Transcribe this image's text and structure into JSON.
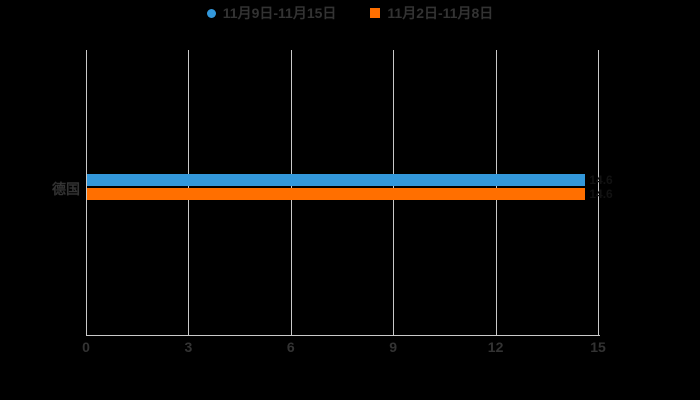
{
  "colors": {
    "background": "#000000",
    "text": "#333333",
    "axis": "#c9c9c9",
    "grid": "#c9c9c9",
    "series_blue": "#3398db",
    "series_orange": "#ff6f00",
    "bar_label": "#121212"
  },
  "legend": {
    "items": [
      {
        "label": "11月9日-11月15日",
        "marker": "circle",
        "color": "#3398db"
      },
      {
        "label": "11月2日-11月8日",
        "marker": "square",
        "color": "#ff6f00"
      }
    ]
  },
  "chart_data": {
    "type": "bar",
    "orientation": "horizontal",
    "title": "",
    "xlabel": "",
    "ylabel": "",
    "categories": [
      "德国"
    ],
    "series": [
      {
        "name": "11月9日-11月15日",
        "color": "#3398db",
        "values": [
          14.6
        ]
      },
      {
        "name": "11月2日-11月8日",
        "color": "#ff6f00",
        "values": [
          14.6
        ]
      }
    ],
    "xlim": [
      0,
      15
    ],
    "xticks": [
      0,
      3,
      6,
      9,
      12,
      15
    ],
    "grid": true,
    "legend_position": "top",
    "data_labels_shown": true
  }
}
